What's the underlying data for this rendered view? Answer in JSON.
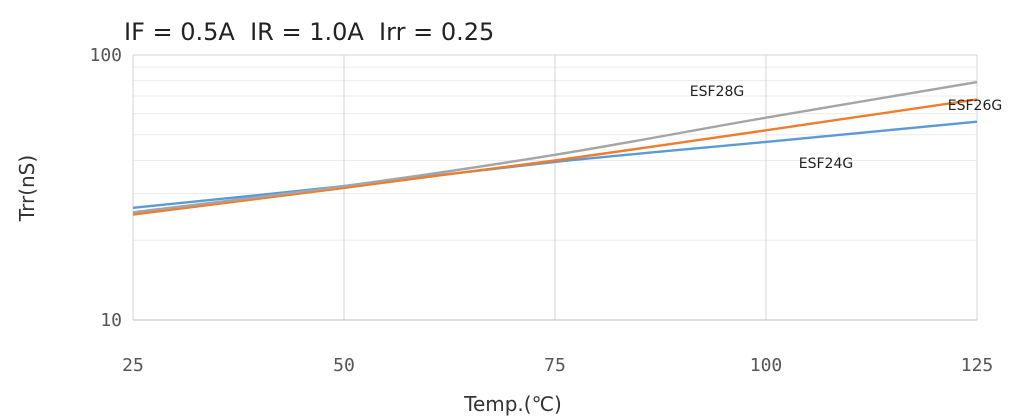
{
  "chart_data": {
    "type": "line",
    "title": "IF = 0.5A  IR = 1.0A  Irr = 0.25",
    "xlabel": "Temp.(℃)",
    "ylabel": "Trr(nS)",
    "xlim": [
      25,
      125
    ],
    "ylim": [
      10,
      100
    ],
    "yscale": "log",
    "x_ticks": [
      25,
      50,
      75,
      100,
      125
    ],
    "y_ticks": [
      10,
      100
    ],
    "x_tick_labels": [
      "25",
      "50",
      "75",
      "100",
      "125"
    ],
    "y_tick_labels": [
      "10",
      "100"
    ],
    "grid": true,
    "legend": "inline-labels",
    "x": [
      25,
      50,
      75,
      100,
      125
    ],
    "series": [
      {
        "name": "ESF24G",
        "color": "#5b9bd5",
        "values": [
          26.5,
          32,
          39.5,
          47,
          56
        ]
      },
      {
        "name": "ESF26G",
        "color": "#ed7d31",
        "values": [
          25,
          31.5,
          40,
          52,
          68
        ]
      },
      {
        "name": "ESF28G",
        "color": "#a5a5a5",
        "values": [
          25.5,
          32,
          42,
          58,
          79
        ]
      }
    ]
  }
}
